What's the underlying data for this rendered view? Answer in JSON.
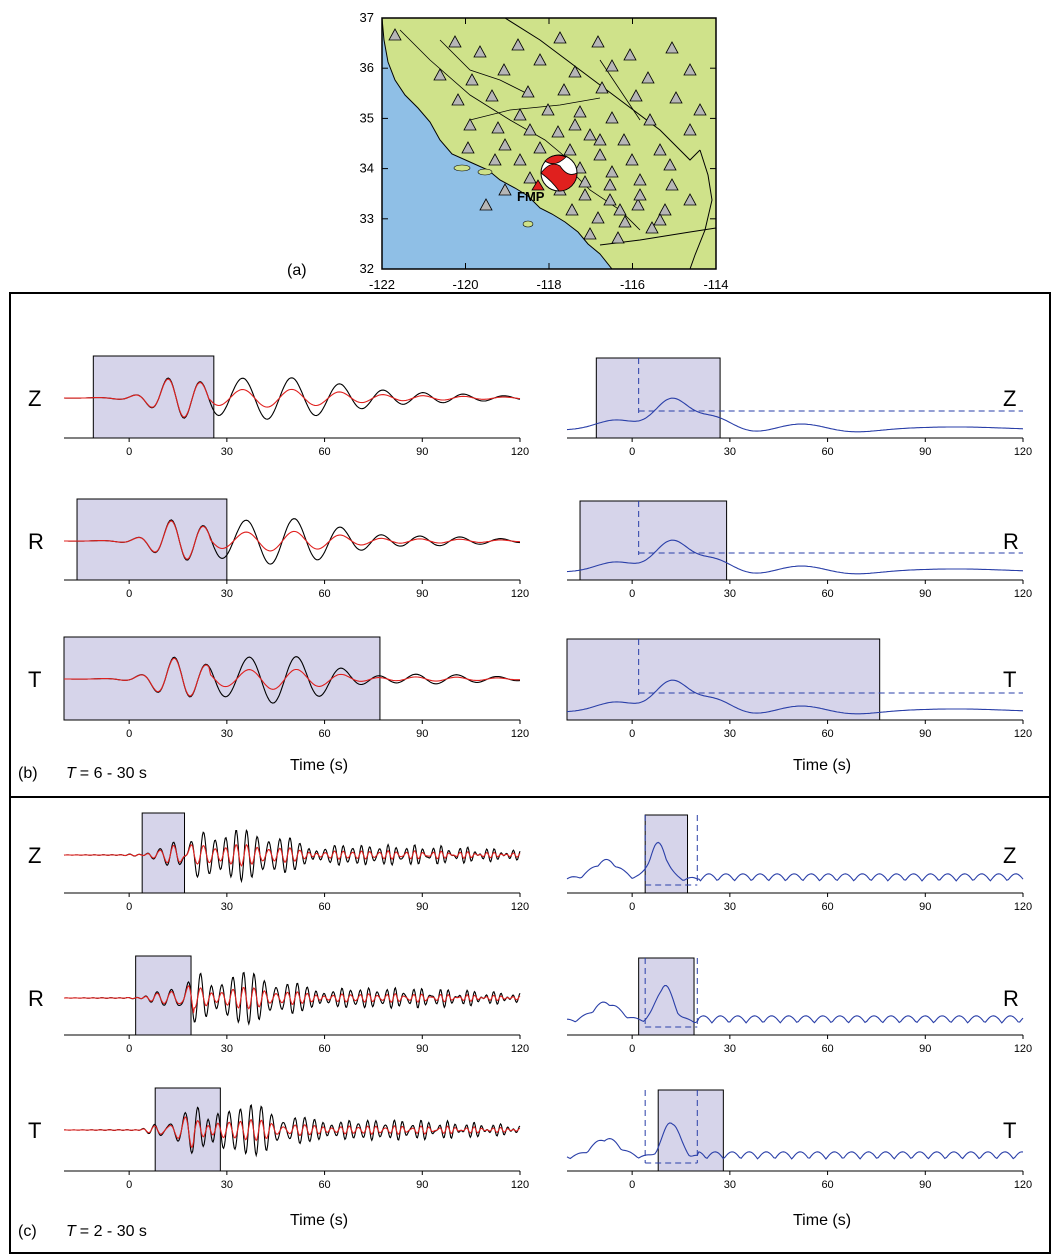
{
  "map": {
    "panel_label": "(a)",
    "lat_ticks": [
      "37",
      "36",
      "35",
      "34",
      "33",
      "32"
    ],
    "lon_ticks": [
      "-122",
      "-120",
      "-118",
      "-116",
      "-114"
    ],
    "station_label": "FMP",
    "colors": {
      "ocean": "#8fbfe6",
      "land": "#cfe28a",
      "station": "#b6b6b6",
      "beachball": "#e0201e"
    }
  },
  "panel_b": {
    "label": "(b)",
    "period": "T = 6 - 30 s",
    "t_symbol": "T",
    "t_range": "= 6 - 30 s"
  },
  "panel_c": {
    "label": "(c)",
    "period": "T = 2 - 30 s",
    "t_symbol": "T",
    "t_range": "= 2 - 30 s"
  },
  "time_label": "Time (s)",
  "components": [
    "Z",
    "R",
    "T"
  ],
  "x_ticks": [
    "0",
    "30",
    "60",
    "90",
    "120"
  ],
  "colors": {
    "observed": "#000000",
    "synthetic": "#e0201e",
    "envelope": "#2a3fa8",
    "window_fill": "#d6d4ea",
    "window_stroke": "#000000"
  },
  "chart_data": [
    {
      "type": "line",
      "panel": "(b)",
      "column": "waveforms",
      "period": "T = 6 - 30 s",
      "xlim": [
        -20,
        120
      ],
      "x_ticks": [
        0,
        30,
        60,
        90,
        120
      ],
      "series": [],
      "windows": [
        {
          "component": "Z",
          "start": -11,
          "end": 26
        },
        {
          "component": "R",
          "start": -16,
          "end": 30
        },
        {
          "component": "T",
          "start": -20,
          "end": 77
        }
      ]
    },
    {
      "type": "line",
      "panel": "(b)",
      "column": "misfit",
      "period": "T = 6 - 30 s",
      "xlim": [
        -20,
        120
      ],
      "x_ticks": [
        0,
        30,
        60,
        90,
        120
      ],
      "windows": [
        {
          "component": "Z",
          "start": -11,
          "end": 27
        },
        {
          "component": "R",
          "start": -16,
          "end": 29
        },
        {
          "component": "T",
          "start": -20,
          "end": 76
        }
      ],
      "dashed_time": [
        2,
        2,
        2
      ]
    },
    {
      "type": "line",
      "panel": "(c)",
      "column": "waveforms",
      "period": "T = 2 - 30 s",
      "xlim": [
        -20,
        120
      ],
      "x_ticks": [
        0,
        30,
        60,
        90,
        120
      ],
      "windows": [
        {
          "component": "Z",
          "start": 4,
          "end": 17
        },
        {
          "component": "R",
          "start": 2,
          "end": 19
        },
        {
          "component": "T",
          "start": 8,
          "end": 28
        }
      ]
    },
    {
      "type": "line",
      "panel": "(c)",
      "column": "misfit",
      "period": "T = 2 - 30 s",
      "xlim": [
        -20,
        120
      ],
      "x_ticks": [
        0,
        30,
        60,
        90,
        120
      ],
      "windows": [
        {
          "component": "Z",
          "start": 4,
          "end": 17
        },
        {
          "component": "R",
          "start": 2,
          "end": 19
        },
        {
          "component": "T",
          "start": 8,
          "end": 28
        }
      ],
      "dashed_time": [
        [
          4,
          20
        ],
        [
          4,
          20
        ],
        [
          4,
          20
        ]
      ]
    }
  ]
}
